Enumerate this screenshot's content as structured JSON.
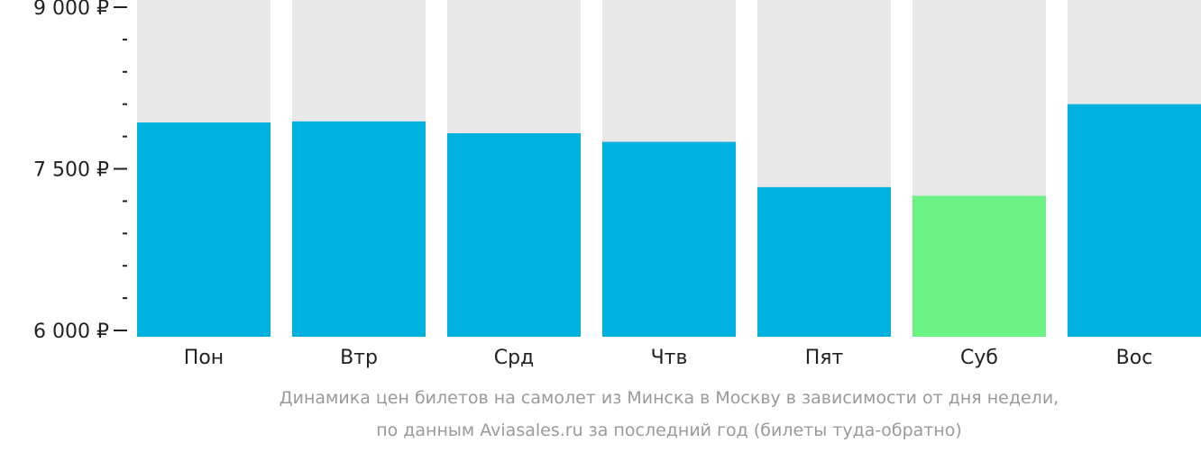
{
  "chart_data": {
    "type": "bar",
    "categories": [
      "Пон",
      "Втр",
      "Срд",
      "Чтв",
      "Пят",
      "Суб",
      "Вос"
    ],
    "values": [
      7930,
      7940,
      7830,
      7750,
      7330,
      7250,
      8100
    ],
    "ylim": [
      6000,
      9000
    ],
    "yticks": [
      {
        "value": 9000,
        "label": "9 000 ₽"
      },
      {
        "value": 7500,
        "label": "7 500 ₽"
      },
      {
        "value": 6000,
        "label": "6 000 ₽"
      }
    ],
    "minor_tick_step": 300,
    "highlight_index": 5,
    "colors": {
      "bar": "#00b0de",
      "highlight": "#6cf286",
      "background_bar": "#e8e8e8",
      "axis": "#222222",
      "caption": "#9a9a9a"
    }
  },
  "caption": {
    "line1": "Динамика цен билетов на самолет из Минска в Москву в зависимости от дня недели,",
    "line2": "по данным Aviasales.ru за последний год (билеты туда-обратно)"
  }
}
